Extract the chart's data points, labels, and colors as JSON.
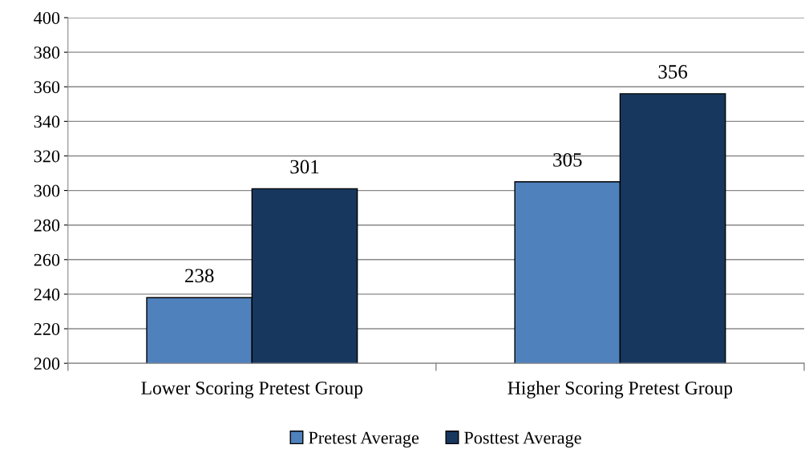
{
  "chart_data": {
    "type": "bar",
    "categories": [
      "Lower Scoring Pretest Group",
      "Higher Scoring Pretest Group"
    ],
    "series": [
      {
        "name": "Pretest Average",
        "color": "#4f81bd",
        "values": [
          238,
          305
        ]
      },
      {
        "name": "Posttest Average",
        "color": "#17375e",
        "values": [
          301,
          356
        ]
      }
    ],
    "ylim": [
      200,
      400
    ],
    "yticks": [
      200,
      220,
      240,
      260,
      280,
      300,
      320,
      340,
      360,
      380,
      400
    ],
    "grid": "y",
    "legend": "bottom",
    "data_labels": true
  }
}
